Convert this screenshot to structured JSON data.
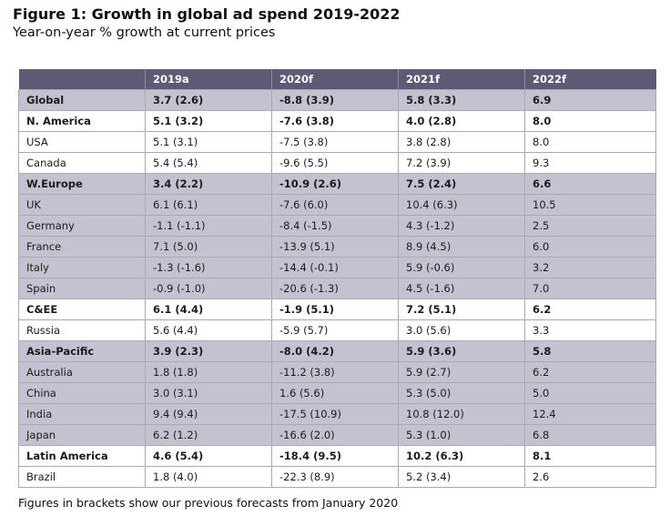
{
  "chart_data": {
    "type": "table",
    "title": "Figure 1: Growth in global ad spend 2019-2022",
    "subtitle": "Year-on-year % growth at current prices",
    "columns": [
      "",
      "2019a",
      "2020f",
      "2021f",
      "2022f"
    ],
    "rows": [
      {
        "label": "Global",
        "values": [
          "3.7 (2.6)",
          "-8.8 (3.9)",
          "5.8 (3.3)",
          "6.9"
        ],
        "bold": true,
        "shaded": true
      },
      {
        "label": "N. America",
        "values": [
          "5.1 (3.2)",
          "-7.6 (3.8)",
          "4.0 (2.8)",
          "8.0"
        ],
        "bold": true,
        "shaded": false
      },
      {
        "label": "USA",
        "values": [
          "5.1 (3.1)",
          "-7.5 (3.8)",
          "3.8 (2.8)",
          "8.0"
        ],
        "bold": false,
        "shaded": false
      },
      {
        "label": "Canada",
        "values": [
          "5.4 (5.4)",
          "-9.6 (5.5)",
          "7.2 (3.9)",
          "9.3"
        ],
        "bold": false,
        "shaded": false
      },
      {
        "label": "W.Europe",
        "values": [
          "3.4 (2.2)",
          "-10.9 (2.6)",
          "7.5 (2.4)",
          "6.6"
        ],
        "bold": true,
        "shaded": true
      },
      {
        "label": "UK",
        "values": [
          "6.1 (6.1)",
          "-7.6 (6.0)",
          "10.4 (6.3)",
          "10.5"
        ],
        "bold": false,
        "shaded": true
      },
      {
        "label": "Germany",
        "values": [
          "-1.1 (-1.1)",
          "-8.4 (-1.5)",
          "4.3 (-1.2)",
          "2.5"
        ],
        "bold": false,
        "shaded": true
      },
      {
        "label": "France",
        "values": [
          "7.1 (5.0)",
          "-13.9 (5.1)",
          "8.9 (4.5)",
          "6.0"
        ],
        "bold": false,
        "shaded": true
      },
      {
        "label": "Italy",
        "values": [
          "-1.3 (-1.6)",
          "-14.4 (-0.1)",
          "5.9 (-0.6)",
          "3.2"
        ],
        "bold": false,
        "shaded": true
      },
      {
        "label": "Spain",
        "values": [
          "-0.9 (-1.0)",
          "-20.6 (-1.3)",
          "4.5 (-1.6)",
          "7.0"
        ],
        "bold": false,
        "shaded": true
      },
      {
        "label": "C&EE",
        "values": [
          "6.1 (4.4)",
          "-1.9 (5.1)",
          "7.2 (5.1)",
          "6.2"
        ],
        "bold": true,
        "shaded": false
      },
      {
        "label": "Russia",
        "values": [
          "5.6 (4.4)",
          "-5.9 (5.7)",
          "3.0 (5.6)",
          "3.3"
        ],
        "bold": false,
        "shaded": false
      },
      {
        "label": "Asia-Pacific",
        "values": [
          "3.9 (2.3)",
          "-8.0 (4.2)",
          "5.9 (3.6)",
          "5.8"
        ],
        "bold": true,
        "shaded": true
      },
      {
        "label": "Australia",
        "values": [
          "1.8 (1.8)",
          "-11.2 (3.8)",
          "5.9 (2.7)",
          "6.2"
        ],
        "bold": false,
        "shaded": true
      },
      {
        "label": "China",
        "values": [
          "3.0 (3.1)",
          "1.6 (5.6)",
          "5.3 (5.0)",
          "5.0"
        ],
        "bold": false,
        "shaded": true
      },
      {
        "label": "India",
        "values": [
          "9.4 (9.4)",
          "-17.5 (10.9)",
          "10.8 (12.0)",
          "12.4"
        ],
        "bold": false,
        "shaded": true
      },
      {
        "label": "Japan",
        "values": [
          "6.2 (1.2)",
          "-16.6 (2.0)",
          "5.3 (1.0)",
          "6.8"
        ],
        "bold": false,
        "shaded": true
      },
      {
        "label": "Latin America",
        "values": [
          "4.6 (5.4)",
          "-18.4 (9.5)",
          "10.2 (6.3)",
          "8.1"
        ],
        "bold": true,
        "shaded": false
      },
      {
        "label": "Brazil",
        "values": [
          "1.8 (4.0)",
          "-22.3 (8.9)",
          "5.2 (3.4)",
          "2.6"
        ],
        "bold": false,
        "shaded": false
      }
    ],
    "footnote": "Figures in brackets show our previous forecasts from January 2020"
  },
  "colors": {
    "header_bg": "#5c5a75",
    "shaded_bg": "#c3c2d0",
    "plain_bg": "#ffffff"
  }
}
